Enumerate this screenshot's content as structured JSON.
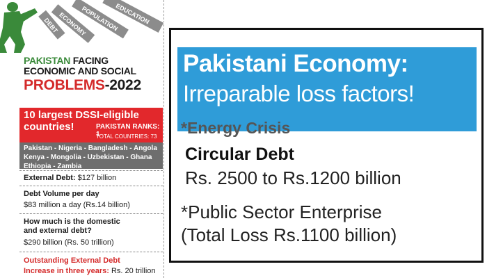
{
  "left": {
    "tags": [
      "DEBT",
      "ECONOMY",
      "POPULATION",
      "EDUCATION"
    ],
    "headline_green": "PAKISTAN",
    "headline_dark": "FACING",
    "headline_line2": "ECONOMIC AND SOCIAL",
    "headline_red": "PROBLEMS",
    "headline_year": "-2022",
    "dssi_title_line1": "10 largest DSSI-eligible",
    "dssi_title_line2": "countries!",
    "pakistan_ranks": "PAKISTAN RANKS: 1",
    "total_countries": "TOTAL COUNTRIES: 73",
    "countries_line1": "Pakistan - Nigeria - Bangladesh - Angola",
    "countries_line2": "Kenya - Mongolia - Uzbekistan - Ghana",
    "countries_line3": "Ethiopia - Zambia",
    "external_debt_label": "External Debt:",
    "external_debt_value": "$127 billion",
    "debt_volume_label": "Debt Volume per day",
    "debt_volume_value": "$83 million a day (Rs.14 billion)",
    "domestic_q_line1": "How much is the domestic",
    "domestic_q_line2": "and external debt?",
    "domestic_value": "$290 billion (Rs. 50 trillion)",
    "outstanding_label": "Outstanding External Debt",
    "increase_label": "Increase in three years:",
    "increase_value": "Rs. 20 trillion"
  },
  "right": {
    "title_line1": "Pakistani Economy:",
    "title_line2": "Irreparable loss factors!",
    "energy_crisis": "*Energy Crisis",
    "circular_debt": "Circular Debt",
    "circular_range": "Rs. 2500 to Rs.1200 billion",
    "public_sector": "*Public Sector Enterprise",
    "total_loss": "(Total Loss Rs.1100 billion)"
  },
  "colors": {
    "red": "#e2282c",
    "blue": "#2f9cd8",
    "green": "#3a8a3a",
    "gray_box": "#6e6e6e",
    "tag_gray": "#8c8c8c"
  },
  "icons": [
    "soldier-silhouette-icon"
  ]
}
